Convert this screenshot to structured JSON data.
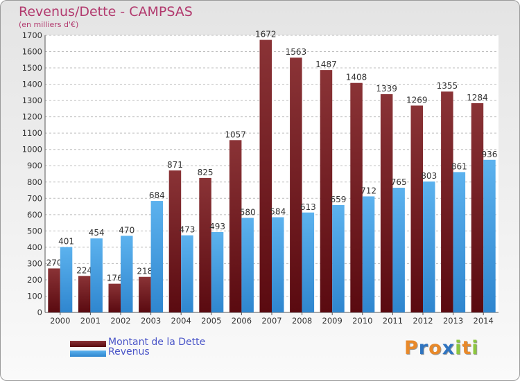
{
  "chart_data": {
    "type": "bar",
    "title": "Revenus/Dette - CAMPSAS",
    "subtitle": "(en milliers d'€)",
    "categories": [
      "2000",
      "2001",
      "2002",
      "2003",
      "2004",
      "2005",
      "2006",
      "2007",
      "2008",
      "2009",
      "2010",
      "2011",
      "2012",
      "2013",
      "2014"
    ],
    "series": [
      {
        "name": "Montant de la Dette",
        "color": "#7a1f25",
        "values": [
          270,
          224,
          176,
          218,
          871,
          825,
          1057,
          1672,
          1563,
          1487,
          1408,
          1339,
          1269,
          1355,
          1284
        ]
      },
      {
        "name": "Revenus",
        "color": "#4aa3e6",
        "values": [
          401,
          454,
          470,
          684,
          473,
          493,
          580,
          584,
          613,
          659,
          712,
          765,
          803,
          861,
          936
        ]
      }
    ],
    "ylim": [
      0,
      1700
    ],
    "yticks": [
      0,
      100,
      200,
      300,
      400,
      500,
      600,
      700,
      800,
      900,
      1000,
      1100,
      1200,
      1300,
      1400,
      1500,
      1600,
      1700
    ],
    "grid": true,
    "legend": "bottom-left"
  },
  "logo": {
    "letters": [
      "P",
      "r",
      "o",
      "x",
      "i",
      "t",
      "i"
    ],
    "colors": [
      "#e8892a",
      "#2f74c0",
      "#e8892a",
      "#2f74c0",
      "#8cc63f",
      "#e8892a",
      "#8cc63f"
    ]
  }
}
